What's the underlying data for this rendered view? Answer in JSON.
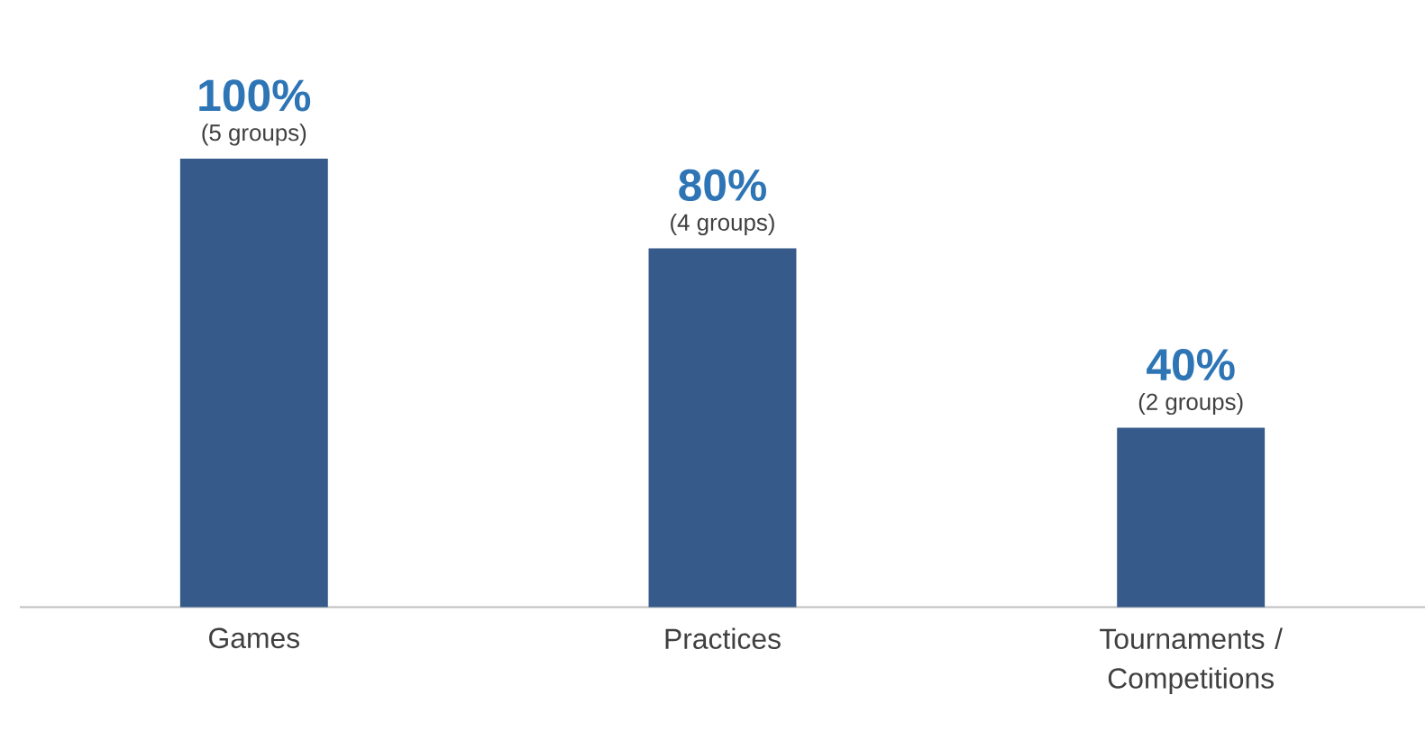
{
  "chart_data": {
    "type": "bar",
    "categories": [
      "Games",
      "Practices",
      "Tournaments / Competitions"
    ],
    "values": [
      100,
      80,
      40
    ],
    "color": "#365a8a",
    "ylim": [
      0,
      100
    ],
    "value_labels": [
      "100%",
      "80%",
      "40%"
    ],
    "annotations": [
      {
        "text": "(5 groups)",
        "x": "Games",
        "y": 100
      },
      {
        "text": "(4 groups)",
        "x": "Practices",
        "y": 80
      },
      {
        "text": "(2 groups)",
        "x": "Tournaments / Competitions",
        "y": 40
      }
    ]
  }
}
